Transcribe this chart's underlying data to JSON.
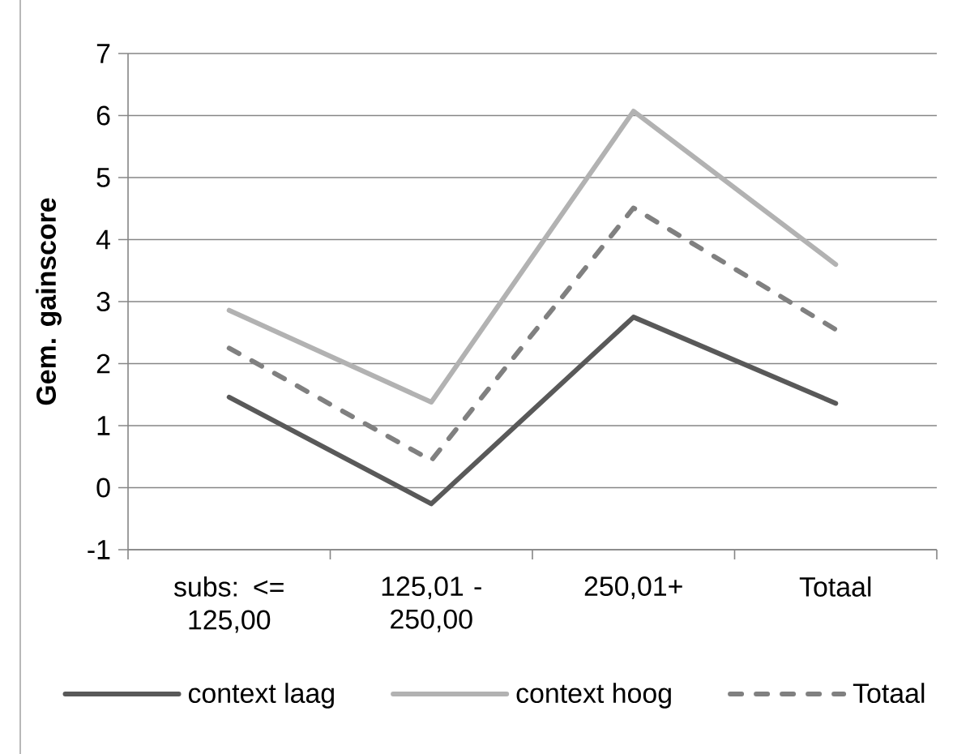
{
  "chart_data": {
    "type": "line",
    "ylabel": "Gem. gainscore",
    "categories": [
      "subs: <= 125,00",
      "125,01 - 250,00",
      "250,01+",
      "Totaal"
    ],
    "series": [
      {
        "name": "context laag",
        "color": "#595959",
        "line_style": "solid",
        "values": [
          1.46,
          -0.26,
          2.75,
          1.36
        ]
      },
      {
        "name": "context hoog",
        "color": "#b2b2b2",
        "line_style": "solid",
        "values": [
          2.86,
          1.38,
          6.07,
          3.6
        ]
      },
      {
        "name": "Totaal",
        "color": "#808080",
        "line_style": "dashed",
        "values": [
          2.25,
          0.44,
          4.51,
          2.55
        ]
      }
    ],
    "ylim": [
      -1,
      7
    ],
    "yticks": [
      -1,
      0,
      1,
      2,
      3,
      4,
      5,
      6,
      7
    ],
    "grid": "y",
    "legend": "bottom",
    "marker": "none"
  }
}
